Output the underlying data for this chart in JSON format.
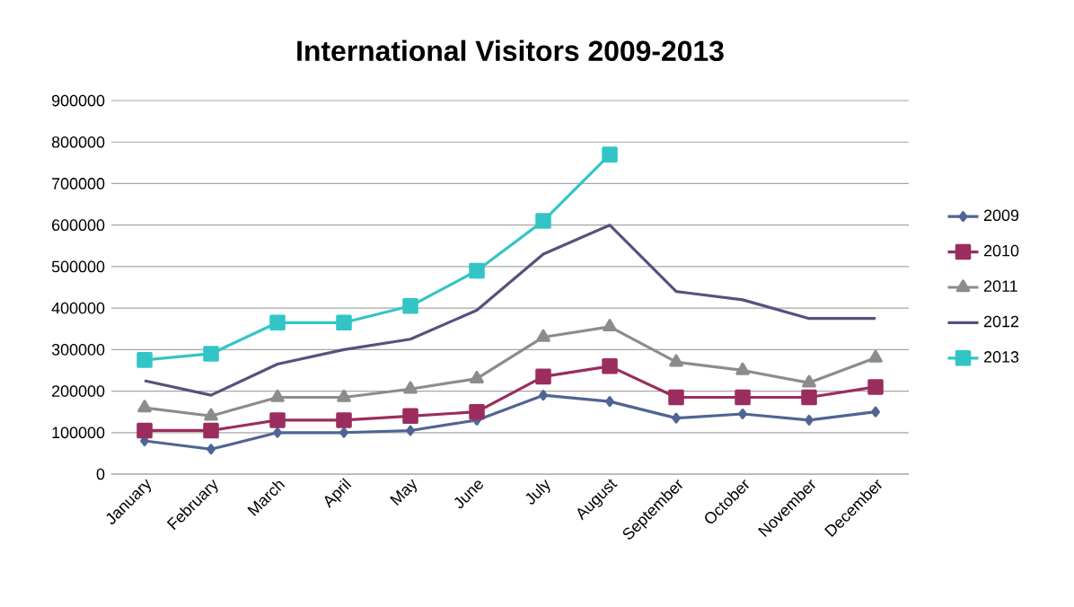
{
  "chart_data": {
    "type": "line",
    "title": "International Visitors 2009-2013",
    "categories": [
      "January",
      "February",
      "March",
      "April",
      "May",
      "June",
      "July",
      "August",
      "September",
      "October",
      "November",
      "December"
    ],
    "series": [
      {
        "name": "2009",
        "color": "#4f6593",
        "marker": "diamond",
        "values": [
          80000,
          60000,
          100000,
          100000,
          105000,
          130000,
          190000,
          175000,
          135000,
          145000,
          130000,
          150000
        ]
      },
      {
        "name": "2010",
        "color": "#9b2d5e",
        "marker": "square",
        "values": [
          105000,
          105000,
          130000,
          130000,
          140000,
          150000,
          235000,
          260000,
          185000,
          185000,
          185000,
          210000
        ]
      },
      {
        "name": "2011",
        "color": "#8c8c8c",
        "marker": "triangle",
        "values": [
          160000,
          140000,
          185000,
          185000,
          205000,
          230000,
          330000,
          355000,
          270000,
          250000,
          220000,
          280000
        ]
      },
      {
        "name": "2012",
        "color": "#5b4f7e",
        "marker": "none",
        "values": [
          225000,
          190000,
          265000,
          300000,
          325000,
          395000,
          530000,
          600000,
          440000,
          420000,
          375000,
          375000
        ]
      },
      {
        "name": "2013",
        "color": "#33c5c5",
        "marker": "square",
        "values": [
          275000,
          290000,
          365000,
          365000,
          405000,
          490000,
          610000,
          770000,
          null,
          null,
          null,
          null
        ]
      }
    ],
    "ylim": [
      0,
      900000
    ],
    "yticks": [
      0,
      100000,
      200000,
      300000,
      400000,
      500000,
      600000,
      700000,
      800000,
      900000
    ],
    "grid": "y",
    "legend": "right"
  }
}
